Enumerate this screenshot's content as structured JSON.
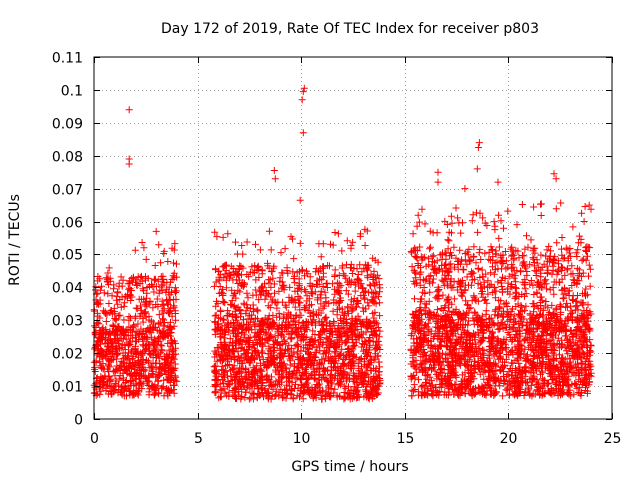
{
  "chart_data": {
    "type": "scatter",
    "title": "Day 172 of 2019, Rate Of TEC Index for receiver p803",
    "xlabel": "GPS time / hours",
    "ylabel": "ROTI / TECUs",
    "xlim": [
      0,
      25
    ],
    "ylim": [
      0,
      0.11
    ],
    "xticks": [
      0,
      5,
      10,
      15,
      20,
      25
    ],
    "xtick_labels": [
      "0",
      "5",
      "10",
      "15",
      "20",
      "25"
    ],
    "yticks": [
      0,
      0.01,
      0.02,
      0.03,
      0.04,
      0.05,
      0.06,
      0.07,
      0.08,
      0.09,
      0.1,
      0.11
    ],
    "ytick_labels": [
      "0",
      "0.01",
      "0.02",
      "0.03",
      "0.04",
      "0.05",
      "0.06",
      "0.07",
      "0.08",
      "0.09",
      "0.1",
      "0.11"
    ],
    "grid": true,
    "marker": "+",
    "color": "#ff0000",
    "data_gaps_hours": [
      [
        4.0,
        5.8
      ],
      [
        13.8,
        15.3
      ]
    ],
    "notable_points": [
      {
        "x": 1.7,
        "y": 0.094
      },
      {
        "x": 1.7,
        "y": 0.079
      },
      {
        "x": 1.7,
        "y": 0.0775
      },
      {
        "x": 10.15,
        "y": 0.1005
      },
      {
        "x": 10.1,
        "y": 0.0995
      },
      {
        "x": 10.05,
        "y": 0.097
      },
      {
        "x": 10.1,
        "y": 0.087
      },
      {
        "x": 8.7,
        "y": 0.0755
      },
      {
        "x": 8.75,
        "y": 0.073
      },
      {
        "x": 9.95,
        "y": 0.0665
      },
      {
        "x": 12.85,
        "y": 0.0555
      },
      {
        "x": 3.0,
        "y": 0.057
      },
      {
        "x": 16.6,
        "y": 0.075
      },
      {
        "x": 16.6,
        "y": 0.072
      },
      {
        "x": 18.6,
        "y": 0.084
      },
      {
        "x": 18.55,
        "y": 0.0825
      },
      {
        "x": 18.5,
        "y": 0.076
      },
      {
        "x": 22.2,
        "y": 0.0745
      },
      {
        "x": 22.3,
        "y": 0.073
      },
      {
        "x": 19.5,
        "y": 0.072
      },
      {
        "x": 17.9,
        "y": 0.07
      },
      {
        "x": 23.9,
        "y": 0.065
      }
    ],
    "segments": [
      {
        "start": 0.0,
        "end": 4.0,
        "count": 900,
        "base_low": 0.007,
        "base_high": 0.028,
        "peak": 0.054
      },
      {
        "start": 5.8,
        "end": 13.8,
        "count": 1900,
        "base_low": 0.006,
        "base_high": 0.03,
        "peak": 0.058
      },
      {
        "start": 15.3,
        "end": 24.0,
        "count": 2300,
        "base_low": 0.007,
        "base_high": 0.032,
        "peak": 0.066
      }
    ]
  }
}
